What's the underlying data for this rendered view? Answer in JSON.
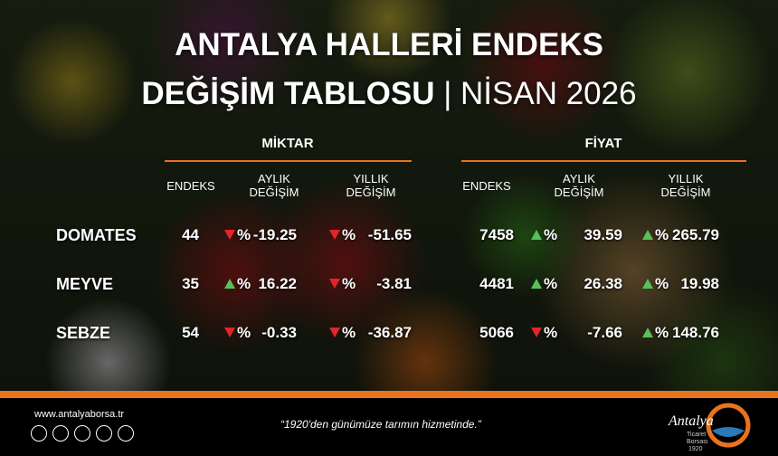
{
  "header": {
    "title_line1": "ANTALYA HALLERİ ENDEKS",
    "title_line2": "DEĞİŞİM TABLOSU",
    "separator": "|",
    "period": "NİSAN 2026"
  },
  "table": {
    "groups": [
      {
        "name": "MİKTAR",
        "columns": [
          [
            "ENDEKS"
          ],
          [
            "AYLIK",
            "DEĞİŞİM"
          ],
          [
            "YILLIK",
            "DEĞİŞİM"
          ]
        ]
      },
      {
        "name": "FİYAT",
        "columns": [
          [
            "ENDEKS"
          ],
          [
            "AYLIK",
            "DEĞİŞİM"
          ],
          [
            "YILLIK",
            "DEĞİŞİM"
          ]
        ]
      }
    ],
    "percent_sign": "%",
    "rows": [
      {
        "name": "DOMATES",
        "values": [
          44,
          -19.25,
          -51.65,
          7458,
          39.59,
          265.79
        ]
      },
      {
        "name": "MEYVE",
        "values": [
          35,
          16.22,
          -3.81,
          4481,
          26.38,
          19.98
        ]
      },
      {
        "name": "SEBZE",
        "values": [
          54,
          -0.33,
          -36.87,
          5066,
          -7.66,
          148.76
        ]
      }
    ]
  },
  "footer": {
    "website": "www.antalyaborsa.tr",
    "slogan": "“1920'den günümüze tarımın hizmetinde.”",
    "logo": {
      "name": "Antalya",
      "line1": "Ticaret",
      "line2": "Borsası",
      "year": "1920"
    }
  }
}
